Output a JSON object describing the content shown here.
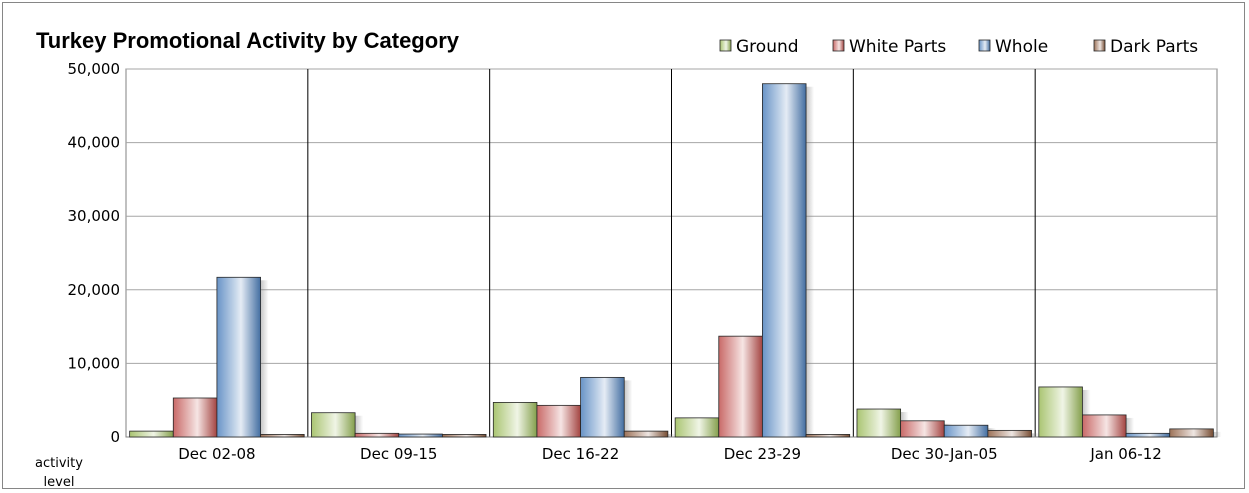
{
  "chart_data": {
    "type": "bar",
    "title": "Turkey Promotional Activity by Category",
    "ylabel": "activity level",
    "xlabel": "",
    "ylim": [
      0,
      50000
    ],
    "y_ticks": [
      "0",
      "10,000",
      "20,000",
      "30,000",
      "40,000",
      "50,000"
    ],
    "y_tick_values": [
      0,
      10000,
      20000,
      30000,
      40000,
      50000
    ],
    "grid": true,
    "legend_position": "top-right",
    "categories": [
      "Dec 02-08",
      "Dec 09-15",
      "Dec 16-22",
      "Dec 23-29",
      "Dec 30-Jan-05",
      "Jan 06-12"
    ],
    "series": [
      {
        "name": "Ground",
        "color": "#9bbb59",
        "values": [
          800,
          3300,
          4700,
          2600,
          3800,
          6800
        ]
      },
      {
        "name": "White Parts",
        "color": "#c0504d",
        "values": [
          5300,
          500,
          4300,
          13700,
          2200,
          3000
        ]
      },
      {
        "name": "Whole",
        "color": "#4f81bd",
        "values": [
          21700,
          400,
          8100,
          48000,
          1600,
          500
        ]
      },
      {
        "name": "Dark Parts",
        "color": "#8c5a3c",
        "values": [
          350,
          350,
          800,
          350,
          900,
          1100
        ]
      }
    ]
  }
}
